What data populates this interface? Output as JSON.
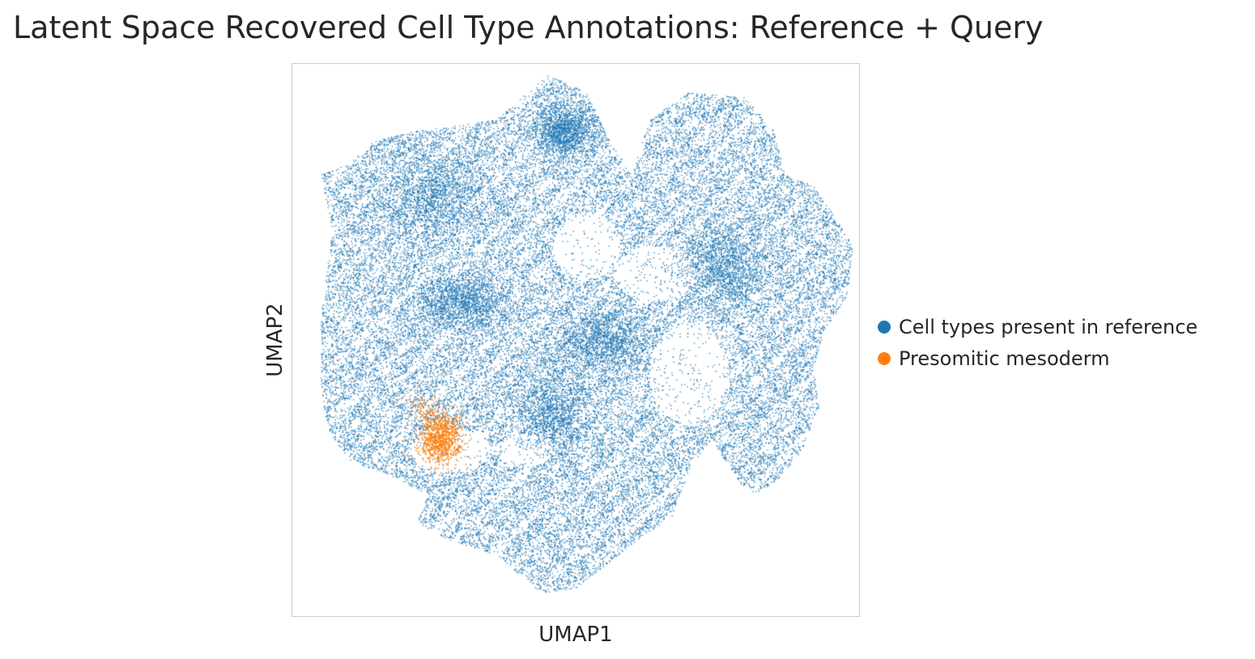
{
  "title": "Latent Space Recovered Cell Type Annotations: Reference + Query",
  "chart_data": {
    "type": "scatter",
    "xlabel": "UMAP1",
    "ylabel": "UMAP2",
    "grid": false,
    "ticks": false,
    "legend_position": "right",
    "series": [
      {
        "name": "Cell types present in reference",
        "color": "#1f77b4",
        "point_count_approx": 40000,
        "region_outline": [
          [
            0.36,
            0.1
          ],
          [
            0.45,
            0.02
          ],
          [
            0.52,
            0.05
          ],
          [
            0.56,
            0.14
          ],
          [
            0.6,
            0.2
          ],
          [
            0.63,
            0.1
          ],
          [
            0.7,
            0.05
          ],
          [
            0.8,
            0.06
          ],
          [
            0.85,
            0.12
          ],
          [
            0.87,
            0.2
          ],
          [
            0.92,
            0.22
          ],
          [
            0.96,
            0.28
          ],
          [
            0.99,
            0.33
          ],
          [
            0.98,
            0.42
          ],
          [
            0.94,
            0.48
          ],
          [
            0.92,
            0.55
          ],
          [
            0.93,
            0.62
          ],
          [
            0.9,
            0.7
          ],
          [
            0.86,
            0.75
          ],
          [
            0.82,
            0.78
          ],
          [
            0.79,
            0.76
          ],
          [
            0.74,
            0.68
          ],
          [
            0.7,
            0.74
          ],
          [
            0.67,
            0.82
          ],
          [
            0.6,
            0.87
          ],
          [
            0.5,
            0.95
          ],
          [
            0.44,
            0.96
          ],
          [
            0.36,
            0.89
          ],
          [
            0.27,
            0.86
          ],
          [
            0.22,
            0.83
          ],
          [
            0.24,
            0.78
          ],
          [
            0.16,
            0.74
          ],
          [
            0.1,
            0.72
          ],
          [
            0.06,
            0.66
          ],
          [
            0.05,
            0.58
          ],
          [
            0.05,
            0.46
          ],
          [
            0.06,
            0.38
          ],
          [
            0.07,
            0.3
          ],
          [
            0.06,
            0.25
          ],
          [
            0.05,
            0.2
          ],
          [
            0.1,
            0.18
          ],
          [
            0.14,
            0.14
          ],
          [
            0.22,
            0.12
          ],
          [
            0.3,
            0.11
          ]
        ],
        "holes": [
          [
            0.52,
            0.33,
            0.06,
            0.06
          ],
          [
            0.64,
            0.38,
            0.07,
            0.05
          ],
          [
            0.7,
            0.56,
            0.07,
            0.09
          ],
          [
            0.28,
            0.7,
            0.07,
            0.04
          ],
          [
            0.41,
            0.7,
            0.05,
            0.03
          ]
        ],
        "dense_regions": [
          [
            0.3,
            0.43,
            0.09,
            0.05
          ],
          [
            0.46,
            0.63,
            0.08,
            0.09
          ],
          [
            0.25,
            0.24,
            0.1,
            0.09
          ],
          [
            0.55,
            0.5,
            0.09,
            0.06
          ],
          [
            0.76,
            0.37,
            0.09,
            0.08
          ],
          [
            0.48,
            0.12,
            0.06,
            0.05
          ]
        ]
      },
      {
        "name": "Presomitic mesoderm",
        "color": "#ff7f0e",
        "point_count_approx": 900,
        "center": [
          0.26,
          0.68
        ],
        "spread": [
          0.035,
          0.04
        ]
      }
    ]
  }
}
